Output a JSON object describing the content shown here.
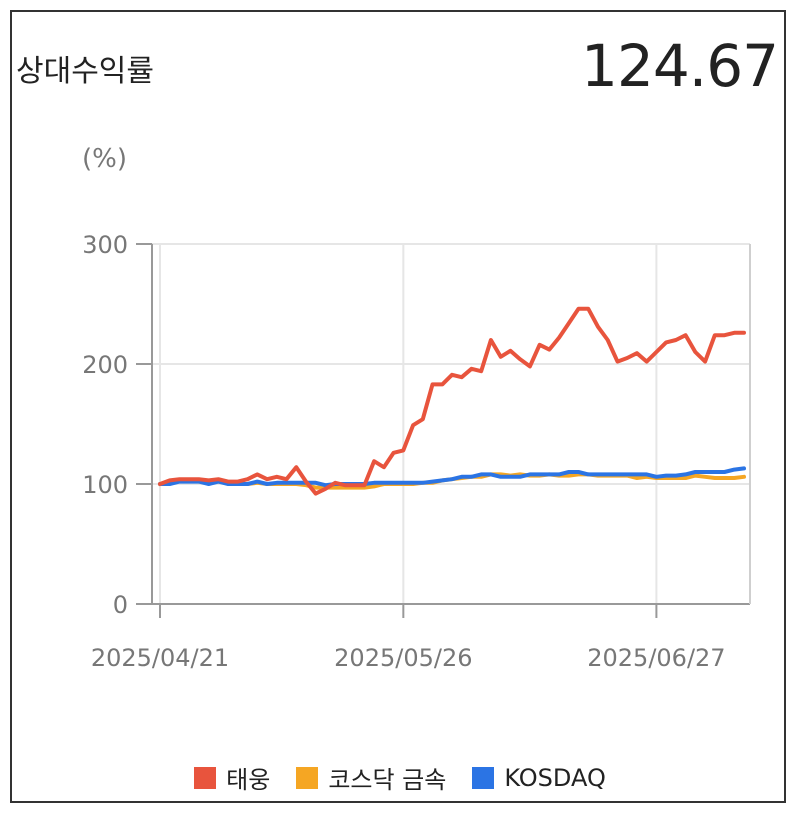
{
  "header": {
    "title": "상대수익률",
    "value": "124.67"
  },
  "chart_data": {
    "type": "line",
    "ylabel": "(%)",
    "ylim": [
      0,
      300
    ],
    "yticks": [
      "0",
      "100",
      "200",
      "300"
    ],
    "xticks": [
      "2025/04/21",
      "2025/05/26",
      "2025/06/27"
    ],
    "xtick_index": [
      0,
      25,
      51
    ],
    "legend_position": "bottom",
    "grid": true,
    "series": [
      {
        "name": "태웅",
        "color": "#e8543d",
        "values": [
          100,
          103,
          104,
          104,
          104,
          103,
          104,
          102,
          102,
          104,
          108,
          104,
          106,
          104,
          114,
          102,
          92,
          96,
          101,
          99,
          99,
          99,
          119,
          114,
          126,
          128,
          149,
          154,
          183,
          183,
          191,
          189,
          196,
          194,
          220,
          206,
          211,
          204,
          198,
          216,
          212,
          222,
          234,
          246,
          246,
          231,
          220,
          202,
          205,
          209,
          202,
          210,
          218,
          220,
          224,
          210,
          202,
          224,
          224,
          226,
          226
        ]
      },
      {
        "name": "코스닥 금속",
        "color": "#f5a623",
        "values": [
          100,
          101,
          103,
          103,
          102,
          102,
          102,
          101,
          100,
          100,
          101,
          100,
          100,
          100,
          100,
          99,
          97,
          97,
          97,
          97,
          97,
          97,
          98,
          100,
          100,
          100,
          100,
          101,
          101,
          103,
          104,
          105,
          106,
          106,
          108,
          108,
          107,
          108,
          107,
          107,
          108,
          107,
          107,
          108,
          108,
          107,
          107,
          107,
          107,
          105,
          106,
          105,
          105,
          105,
          105,
          107,
          106,
          105,
          105,
          105,
          106
        ]
      },
      {
        "name": "KOSDAQ",
        "color": "#2b74e4",
        "values": [
          100,
          100,
          102,
          102,
          102,
          100,
          102,
          100,
          100,
          100,
          102,
          100,
          101,
          101,
          101,
          101,
          101,
          99,
          100,
          100,
          100,
          100,
          101,
          101,
          101,
          101,
          101,
          101,
          102,
          103,
          104,
          106,
          106,
          108,
          108,
          106,
          106,
          106,
          108,
          108,
          108,
          108,
          110,
          110,
          108,
          108,
          108,
          108,
          108,
          108,
          108,
          106,
          107,
          107,
          108,
          110,
          110,
          110,
          110,
          112,
          113
        ]
      }
    ]
  }
}
